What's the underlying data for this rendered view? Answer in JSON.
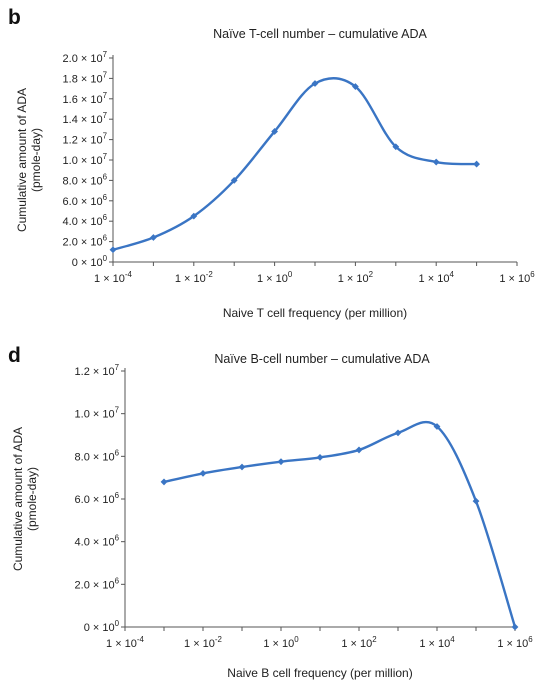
{
  "chart_data": [
    {
      "panel_label": "b",
      "type": "line",
      "title": "Naïve T-cell number – cumulative ADA",
      "xlabel": "Naive T cell frequency (per million)",
      "ylabel_lines": [
        "Cumulative amount of ADA",
        "(pmole-day)"
      ],
      "xscale": "log",
      "xlim": [
        0.0001,
        1000000
      ],
      "x_tick_mantissa": "1 × 10",
      "x_tick_exponents": [
        "-4",
        "-2",
        "0",
        "2",
        "4",
        "6"
      ],
      "ylim": [
        0,
        20000000
      ],
      "y_ticks": [
        {
          "m": "0 × 10",
          "e": "0"
        },
        {
          "m": "2.0 × 10",
          "e": "6"
        },
        {
          "m": "4.0 × 10",
          "e": "6"
        },
        {
          "m": "6.0 × 10",
          "e": "6"
        },
        {
          "m": "8.0 × 10",
          "e": "6"
        },
        {
          "m": "1.0 × 10",
          "e": "7"
        },
        {
          "m": "1.2 × 10",
          "e": "7"
        },
        {
          "m": "1.4 × 10",
          "e": "7"
        },
        {
          "m": "1.6 × 10",
          "e": "7"
        },
        {
          "m": "1.8 × 10",
          "e": "7"
        },
        {
          "m": "2.0 × 10",
          "e": "7"
        }
      ],
      "grid": false,
      "line_color": "#3a75c4",
      "series": [
        {
          "x": [
            0.0001,
            0.001,
            0.01,
            0.1,
            1,
            10,
            100,
            1000,
            10000,
            100000
          ],
          "y": [
            1200000,
            2400000,
            4500000,
            8000000,
            12800000,
            17500000,
            17200000,
            11300000,
            9800000,
            9600000
          ]
        }
      ]
    },
    {
      "panel_label": "d",
      "type": "line",
      "title": "Naïve B-cell number – cumulative ADA",
      "xlabel": "Naive B cell frequency (per million)",
      "ylabel_lines": [
        "Cumulative amount of ADA",
        "(pmole-day)"
      ],
      "xscale": "log",
      "xlim": [
        0.0001,
        1000000
      ],
      "x_tick_mantissa": "1 × 10",
      "x_tick_exponents": [
        "-4",
        "-2",
        "0",
        "2",
        "4",
        "6"
      ],
      "ylim": [
        0,
        12000000
      ],
      "y_ticks": [
        {
          "m": "0 × 10",
          "e": "0"
        },
        {
          "m": "2.0 × 10",
          "e": "6"
        },
        {
          "m": "4.0 × 10",
          "e": "6"
        },
        {
          "m": "6.0 × 10",
          "e": "6"
        },
        {
          "m": "8.0 × 10",
          "e": "6"
        },
        {
          "m": "1.0 × 10",
          "e": "7"
        },
        {
          "m": "1.2 × 10",
          "e": "7"
        }
      ],
      "grid": false,
      "line_color": "#3a75c4",
      "series": [
        {
          "x": [
            0.001,
            0.01,
            0.1,
            1,
            10,
            100,
            1000,
            10000,
            100000,
            1000000
          ],
          "y": [
            6800000,
            7200000,
            7500000,
            7750000,
            7950000,
            8300000,
            9100000,
            9400000,
            5900000,
            0
          ]
        }
      ]
    }
  ]
}
